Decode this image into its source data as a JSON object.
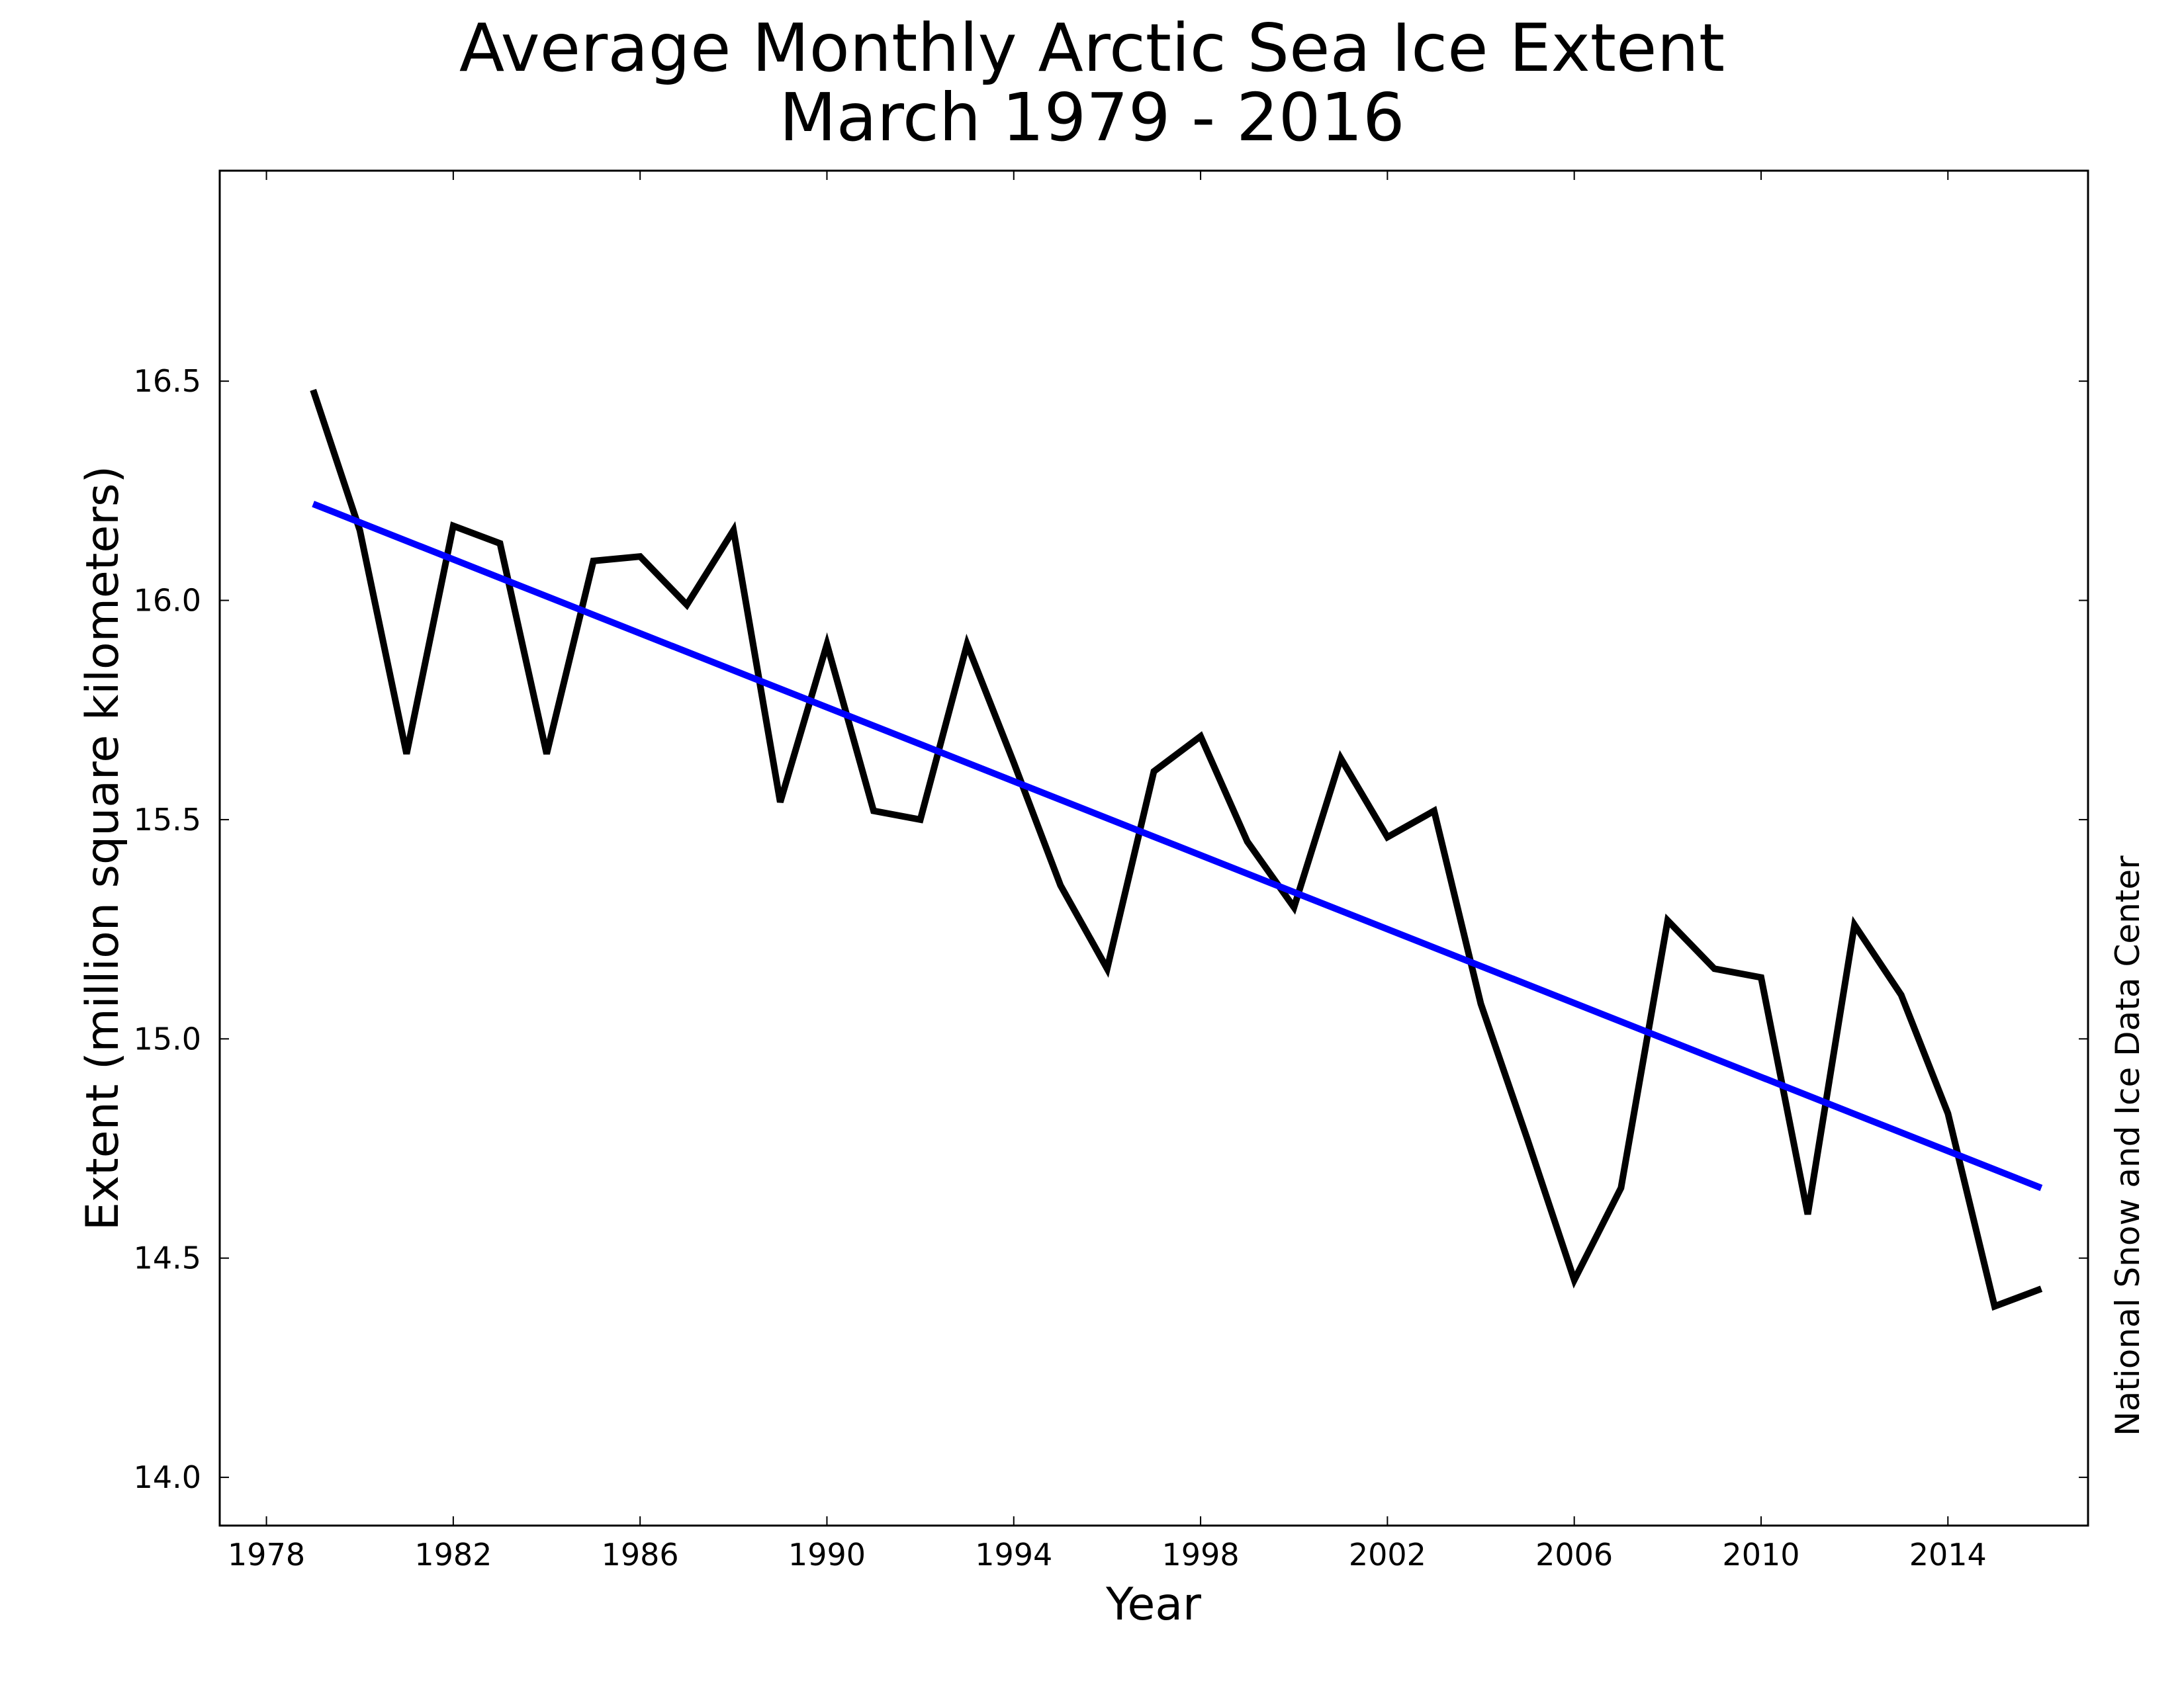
{
  "chart_data": {
    "type": "line",
    "title": "Average Monthly Arctic Sea Ice Extent",
    "subtitle": "March 1979 - 2016",
    "xlabel": "Year",
    "ylabel": "Extent (million square kilometers)",
    "credit": "National Snow and Ice Data Center",
    "xlim": [
      1977,
      2017
    ],
    "ylim": [
      13.89,
      16.98
    ],
    "x_ticks": [
      "1978",
      "1982",
      "1986",
      "1990",
      "1994",
      "1998",
      "2002",
      "2006",
      "2010",
      "2014"
    ],
    "y_ticks": [
      "14.0",
      "14.5",
      "15.0",
      "15.5",
      "16.0",
      "16.5"
    ],
    "grid": false,
    "x": [
      1979,
      1980,
      1981,
      1982,
      1983,
      1984,
      1985,
      1986,
      1987,
      1988,
      1989,
      1990,
      1991,
      1992,
      1993,
      1994,
      1995,
      1996,
      1997,
      1998,
      1999,
      2000,
      2001,
      2002,
      2003,
      2004,
      2005,
      2006,
      2007,
      2008,
      2009,
      2010,
      2011,
      2012,
      2013,
      2014,
      2015,
      2016
    ],
    "series": [
      {
        "color": "#000000",
        "values": [
          16.48,
          16.16,
          15.65,
          16.17,
          16.13,
          15.65,
          16.09,
          16.1,
          15.99,
          16.16,
          15.54,
          15.9,
          15.52,
          15.5,
          15.9,
          15.63,
          15.35,
          15.16,
          15.61,
          15.69,
          15.45,
          15.3,
          15.64,
          15.46,
          15.52,
          15.08,
          14.77,
          14.45,
          14.66,
          15.27,
          15.16,
          15.14,
          14.6,
          15.26,
          15.1,
          14.83,
          14.39,
          14.43
        ]
      },
      {
        "color": "#0000ff",
        "trend": true,
        "x": [
          1979,
          2016
        ],
        "values": [
          16.22,
          14.66
        ]
      }
    ]
  }
}
